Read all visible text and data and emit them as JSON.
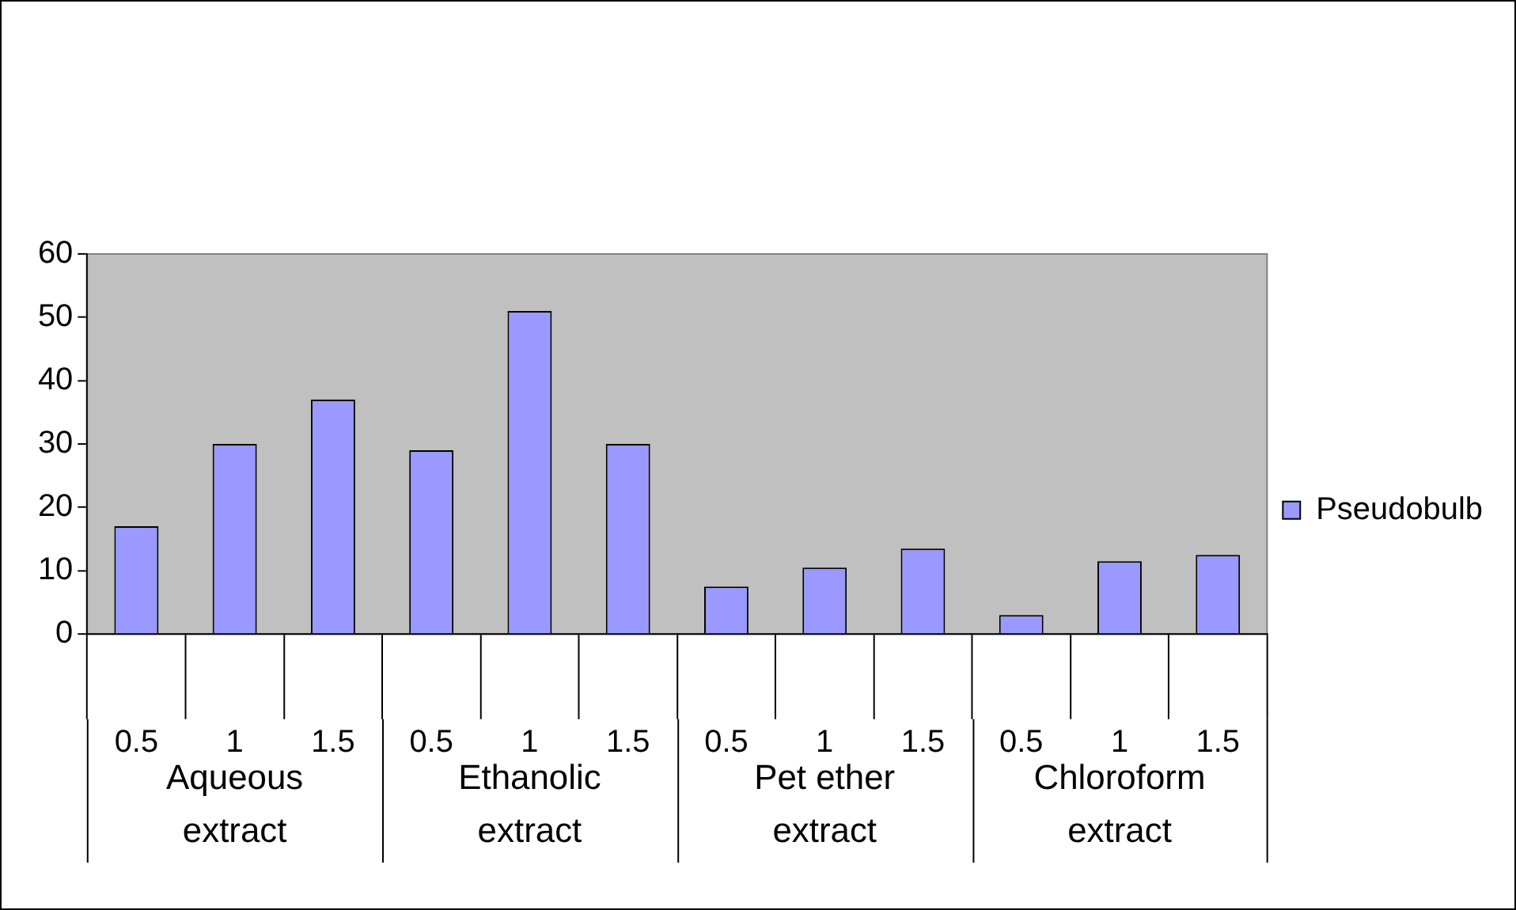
{
  "chart_data": {
    "type": "bar",
    "categories": [
      "0.5",
      "1",
      "1.5",
      "0.5",
      "1",
      "1.5",
      "0.5",
      "1",
      "1.5",
      "0.5",
      "1",
      "1.5"
    ],
    "series": [
      {
        "name": "Pseudobulb",
        "color": "#9999ff",
        "values": [
          17,
          30,
          37,
          29,
          51,
          30,
          7.5,
          10.5,
          13.5,
          3,
          11.5,
          12.5
        ]
      }
    ],
    "annotations": [
      "Aqueous extract",
      "Ethanolic extract",
      "Pet ether extract",
      "Chloroform extract"
    ],
    "ylim": [
      0,
      60
    ],
    "yticks": [
      0,
      10,
      20,
      30,
      40,
      50,
      60
    ],
    "grid": false,
    "legend": "right"
  }
}
